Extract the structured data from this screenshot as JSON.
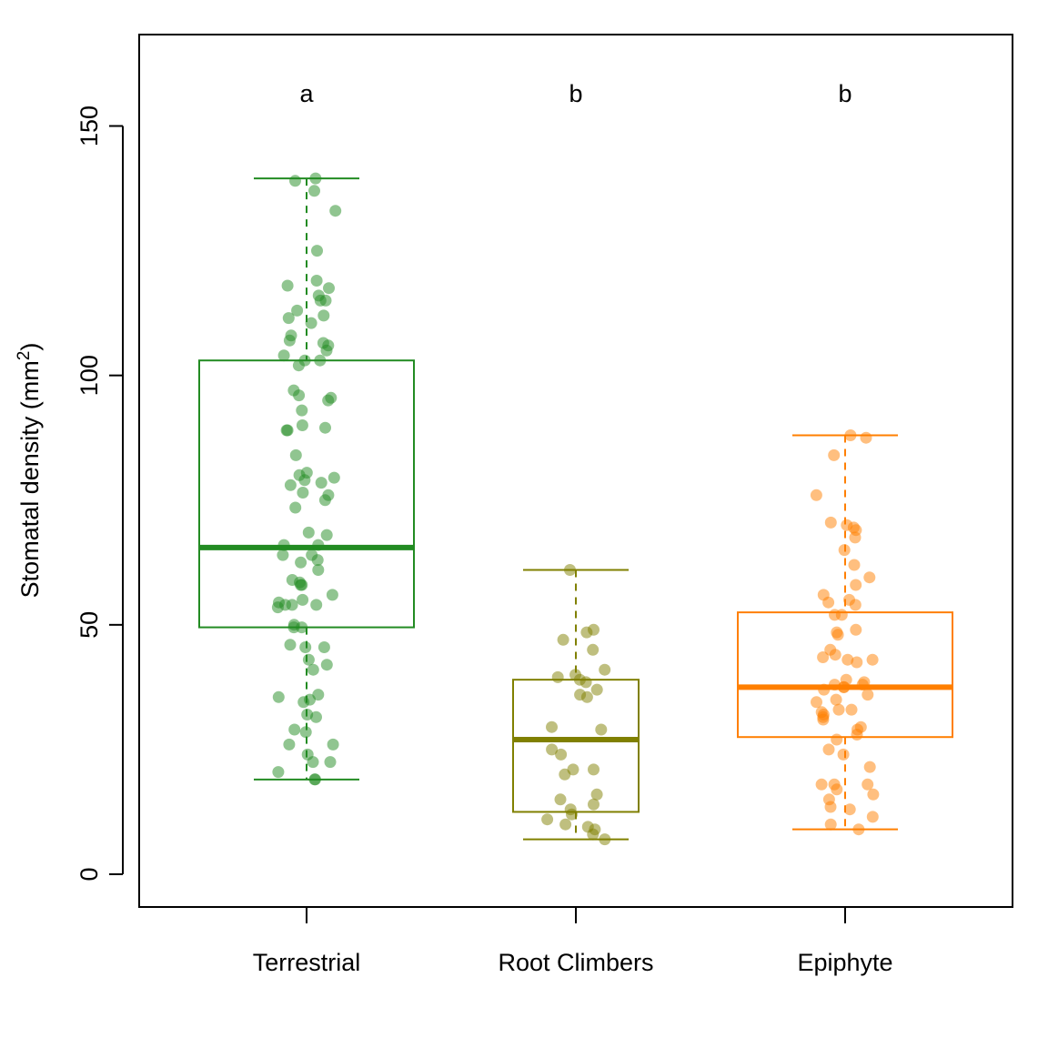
{
  "chart_data": {
    "type": "box",
    "ylabel": "Stomatal density  (mm",
    "ylabel_superscript": "2",
    "ylabel_close": ")",
    "ylim": [
      -6,
      168
    ],
    "yticks": [
      0,
      50,
      100,
      150
    ],
    "ytick_labels": [
      "0",
      "50",
      "100",
      "150"
    ],
    "categories": [
      "Terrestrial",
      "Root Climbers",
      "Epiphyte"
    ],
    "significance_letters": [
      "a",
      "b",
      "b"
    ],
    "colors": [
      "#228B22",
      "#808000",
      "#FF7F00"
    ],
    "boxes": [
      {
        "name": "Terrestrial",
        "whisker_low": 19,
        "q1": 49.5,
        "median": 65.5,
        "q3": 103,
        "whisker_high": 139.5,
        "points": [
          139.5,
          139,
          137,
          133,
          125,
          119,
          118,
          117.5,
          116,
          115,
          115,
          113,
          112,
          111.5,
          110.5,
          108,
          107,
          106.5,
          106,
          105,
          104,
          103,
          103,
          102,
          97,
          96,
          95.5,
          95,
          93,
          90,
          89.5,
          89,
          89,
          84,
          80,
          80.5,
          79.5,
          79,
          78.5,
          78,
          76.5,
          76,
          75,
          73.5,
          68.5,
          68,
          66,
          66,
          64,
          64,
          63,
          62.5,
          61,
          59,
          58.5,
          58,
          58,
          56,
          55,
          54.5,
          54,
          54,
          54,
          53.5,
          50,
          49.5,
          49.5,
          46,
          45.5,
          45.5,
          43,
          42,
          41,
          36,
          35.5,
          35,
          34.5,
          32,
          31.5,
          29,
          28.5,
          26,
          26,
          24,
          22.5,
          22.5,
          20.5,
          19,
          19
        ]
      },
      {
        "name": "Root Climbers",
        "whisker_low": 7,
        "q1": 12.5,
        "median": 27,
        "q3": 39,
        "whisker_high": 61,
        "points": [
          61,
          49,
          48.5,
          47,
          45,
          41,
          40,
          39.5,
          39,
          38.5,
          37,
          36,
          35.5,
          29.5,
          29,
          25,
          24,
          21,
          21,
          20,
          16,
          15,
          14,
          13,
          12,
          11,
          10,
          9.5,
          9,
          8,
          7
        ]
      },
      {
        "name": "Epiphyte",
        "whisker_low": 9,
        "q1": 27.5,
        "median": 37.5,
        "q3": 52.5,
        "whisker_high": 88,
        "points": [
          88,
          87.5,
          84,
          76,
          70.5,
          70,
          69.5,
          69,
          67.5,
          65,
          62,
          59.5,
          58,
          56,
          55,
          54.5,
          54,
          52,
          52,
          49,
          48.5,
          48,
          45,
          44,
          43.5,
          43,
          43,
          42.5,
          39,
          38.5,
          38,
          38,
          37.5,
          37.5,
          37,
          36,
          35,
          34.5,
          33,
          33,
          32.5,
          32,
          31.5,
          31,
          29.5,
          29,
          28,
          27,
          25,
          24,
          21.5,
          18,
          18,
          18,
          17,
          16,
          15,
          13.5,
          13,
          11.5,
          10,
          9
        ]
      }
    ]
  }
}
